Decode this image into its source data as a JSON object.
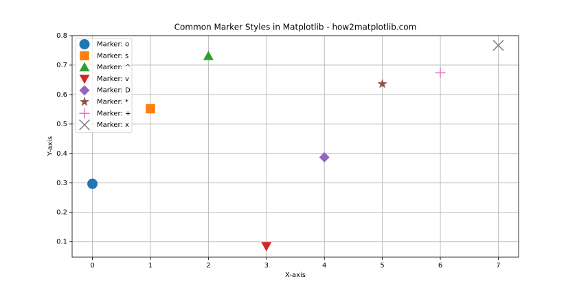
{
  "chart_data": {
    "type": "scatter",
    "title": "Common Marker Styles in Matplotlib - how2matplotlib.com",
    "x_label": "X-axis",
    "y_label": "Y-axis",
    "series": [
      {
        "name": "Marker: o",
        "marker": "o",
        "color": "#1f77b4",
        "x": [
          0
        ],
        "values": [
          0.297
        ]
      },
      {
        "name": "Marker: s",
        "marker": "s",
        "color": "#ff7f0e",
        "x": [
          1
        ],
        "values": [
          0.552
        ]
      },
      {
        "name": "Marker: ^",
        "marker": "^",
        "color": "#2ca02c",
        "x": [
          2
        ],
        "values": [
          0.731
        ]
      },
      {
        "name": "Marker: v",
        "marker": "v",
        "color": "#d62728",
        "x": [
          3
        ],
        "values": [
          0.085
        ]
      },
      {
        "name": "Marker: D",
        "marker": "D",
        "color": "#9467bd",
        "x": [
          4
        ],
        "values": [
          0.387
        ]
      },
      {
        "name": "Marker: *",
        "marker": "*",
        "color": "#8c564b",
        "x": [
          5
        ],
        "values": [
          0.636
        ]
      },
      {
        "name": "Marker: +",
        "marker": "+",
        "color": "#e377c2",
        "x": [
          6
        ],
        "values": [
          0.674
        ]
      },
      {
        "name": "Marker: x",
        "marker": "x",
        "color": "#7f7f7f",
        "x": [
          7
        ],
        "values": [
          0.767
        ]
      }
    ],
    "xlim": [
      -0.35,
      7.35
    ],
    "ylim": [
      0.048,
      0.8
    ],
    "xticks": [
      0,
      1,
      2,
      3,
      4,
      5,
      6,
      7
    ],
    "yticks": [
      0.1,
      0.2,
      0.3,
      0.4,
      0.5,
      0.6,
      0.7,
      0.8
    ],
    "grid": true,
    "legend": "upper left"
  }
}
